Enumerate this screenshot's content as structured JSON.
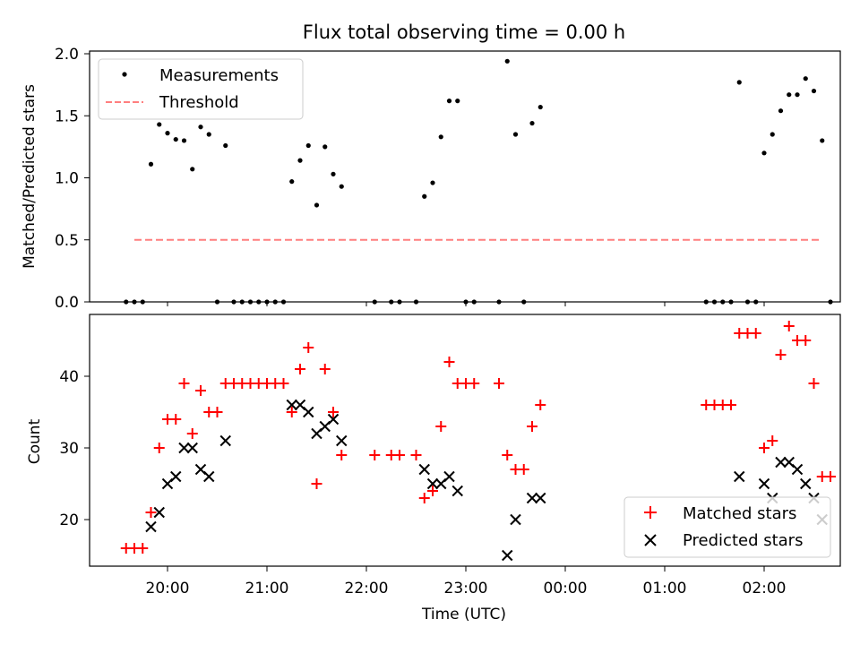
{
  "title": "Flux total observing time = 0.00 h",
  "chart_data": [
    {
      "type": "scatter",
      "ylabel": "Matched/Predicted stars",
      "ylim": [
        0,
        2.0
      ],
      "yticks": [
        "0.0",
        "0.5",
        "1.0",
        "1.5",
        "2.0"
      ],
      "legend_position": "top-left",
      "series": [
        {
          "name": "Measurements",
          "marker": "dot",
          "color": "#000000",
          "points": [
            [
              "19:35",
              0
            ],
            [
              "19:40",
              0
            ],
            [
              "19:45",
              0
            ],
            [
              "19:50",
              1.11
            ],
            [
              "19:55",
              1.43
            ],
            [
              "20:00",
              1.36
            ],
            [
              "20:05",
              1.31
            ],
            [
              "20:10",
              1.3
            ],
            [
              "20:15",
              1.07
            ],
            [
              "20:20",
              1.41
            ],
            [
              "20:25",
              1.35
            ],
            [
              "20:30",
              0
            ],
            [
              "20:35",
              1.26
            ],
            [
              "20:40",
              0
            ],
            [
              "20:45",
              0
            ],
            [
              "20:50",
              0
            ],
            [
              "20:55",
              0
            ],
            [
              "21:00",
              0
            ],
            [
              "21:05",
              0
            ],
            [
              "21:10",
              0
            ],
            [
              "21:15",
              0.97
            ],
            [
              "21:20",
              1.14
            ],
            [
              "21:25",
              1.26
            ],
            [
              "21:30",
              0.78
            ],
            [
              "21:35",
              1.25
            ],
            [
              "21:40",
              1.03
            ],
            [
              "21:45",
              0.93
            ],
            [
              "22:05",
              0
            ],
            [
              "22:15",
              0
            ],
            [
              "22:20",
              0
            ],
            [
              "22:30",
              0
            ],
            [
              "22:35",
              0.85
            ],
            [
              "22:40",
              0.96
            ],
            [
              "22:45",
              1.33
            ],
            [
              "22:50",
              1.62
            ],
            [
              "22:55",
              1.62
            ],
            [
              "23:00",
              0
            ],
            [
              "23:05",
              0
            ],
            [
              "23:20",
              0
            ],
            [
              "23:25",
              1.94
            ],
            [
              "23:30",
              1.35
            ],
            [
              "23:35",
              0
            ],
            [
              "23:40",
              1.44
            ],
            [
              "23:45",
              1.57
            ],
            [
              "01:25",
              0
            ],
            [
              "01:30",
              0
            ],
            [
              "01:35",
              0
            ],
            [
              "01:40",
              0
            ],
            [
              "01:45",
              1.77
            ],
            [
              "01:50",
              0
            ],
            [
              "01:55",
              0
            ],
            [
              "02:00",
              1.2
            ],
            [
              "02:05",
              1.35
            ],
            [
              "02:10",
              1.54
            ],
            [
              "02:15",
              1.67
            ],
            [
              "02:20",
              1.67
            ],
            [
              "02:25",
              1.8
            ],
            [
              "02:30",
              1.7
            ],
            [
              "02:35",
              1.3
            ],
            [
              "02:40",
              0
            ]
          ]
        },
        {
          "name": "Threshold",
          "marker": "dashed-line",
          "color": "#ff7f7f",
          "points": [
            [
              "19:40",
              0.5
            ],
            [
              "02:35",
              0.5
            ]
          ]
        }
      ]
    },
    {
      "type": "scatter",
      "xlabel": "Time (UTC)",
      "ylabel": "Count",
      "ylim": [
        13.6,
        48
      ],
      "yticks": [
        "20",
        "30",
        "40"
      ],
      "xticks": [
        "20:00",
        "21:00",
        "22:00",
        "23:00",
        "00:00",
        "01:00",
        "02:00"
      ],
      "legend_position": "bottom-right",
      "series": [
        {
          "name": "Matched stars",
          "marker": "plus",
          "color": "#ff0000",
          "points": [
            [
              "19:35",
              16
            ],
            [
              "19:40",
              16
            ],
            [
              "19:45",
              16
            ],
            [
              "19:50",
              21
            ],
            [
              "19:55",
              30
            ],
            [
              "20:00",
              34
            ],
            [
              "20:05",
              34
            ],
            [
              "20:10",
              39
            ],
            [
              "20:15",
              32
            ],
            [
              "20:20",
              38
            ],
            [
              "20:25",
              35
            ],
            [
              "20:30",
              35
            ],
            [
              "20:35",
              39
            ],
            [
              "20:40",
              39
            ],
            [
              "20:45",
              39
            ],
            [
              "20:50",
              39
            ],
            [
              "20:55",
              39
            ],
            [
              "21:00",
              39
            ],
            [
              "21:05",
              39
            ],
            [
              "21:10",
              39
            ],
            [
              "21:15",
              35
            ],
            [
              "21:20",
              41
            ],
            [
              "21:25",
              44
            ],
            [
              "21:30",
              25
            ],
            [
              "21:35",
              41
            ],
            [
              "21:40",
              35
            ],
            [
              "21:45",
              29
            ],
            [
              "22:05",
              29
            ],
            [
              "22:15",
              29
            ],
            [
              "22:20",
              29
            ],
            [
              "22:30",
              29
            ],
            [
              "22:35",
              23
            ],
            [
              "22:40",
              24
            ],
            [
              "22:45",
              33
            ],
            [
              "22:50",
              42
            ],
            [
              "22:55",
              39
            ],
            [
              "23:00",
              39
            ],
            [
              "23:05",
              39
            ],
            [
              "23:20",
              39
            ],
            [
              "23:25",
              29
            ],
            [
              "23:30",
              27
            ],
            [
              "23:35",
              27
            ],
            [
              "23:40",
              33
            ],
            [
              "23:45",
              36
            ],
            [
              "01:25",
              36
            ],
            [
              "01:30",
              36
            ],
            [
              "01:35",
              36
            ],
            [
              "01:40",
              36
            ],
            [
              "01:45",
              46
            ],
            [
              "01:50",
              46
            ],
            [
              "01:55",
              46
            ],
            [
              "02:00",
              30
            ],
            [
              "02:05",
              31
            ],
            [
              "02:10",
              43
            ],
            [
              "02:15",
              47
            ],
            [
              "02:20",
              45
            ],
            [
              "02:25",
              45
            ],
            [
              "02:30",
              39
            ],
            [
              "02:35",
              26
            ],
            [
              "02:40",
              26
            ]
          ]
        },
        {
          "name": "Predicted stars",
          "marker": "x",
          "color": "#000000",
          "points": [
            [
              "19:50",
              19
            ],
            [
              "19:55",
              21
            ],
            [
              "20:00",
              25
            ],
            [
              "20:05",
              26
            ],
            [
              "20:10",
              30
            ],
            [
              "20:15",
              30
            ],
            [
              "20:20",
              27
            ],
            [
              "20:25",
              26
            ],
            [
              "20:35",
              31
            ],
            [
              "21:15",
              36
            ],
            [
              "21:20",
              36
            ],
            [
              "21:25",
              35
            ],
            [
              "21:30",
              32
            ],
            [
              "21:35",
              33
            ],
            [
              "21:40",
              34
            ],
            [
              "21:45",
              31
            ],
            [
              "22:35",
              27
            ],
            [
              "22:40",
              25
            ],
            [
              "22:45",
              25
            ],
            [
              "22:50",
              26
            ],
            [
              "22:55",
              24
            ],
            [
              "23:25",
              15
            ],
            [
              "23:30",
              20
            ],
            [
              "23:40",
              23
            ],
            [
              "23:45",
              23
            ],
            [
              "01:45",
              26
            ],
            [
              "02:00",
              25
            ],
            [
              "02:05",
              23
            ],
            [
              "02:10",
              28
            ],
            [
              "02:15",
              28
            ],
            [
              "02:20",
              27
            ],
            [
              "02:25",
              25
            ],
            [
              "02:30",
              23
            ],
            [
              "02:35",
              20
            ]
          ]
        }
      ]
    }
  ]
}
